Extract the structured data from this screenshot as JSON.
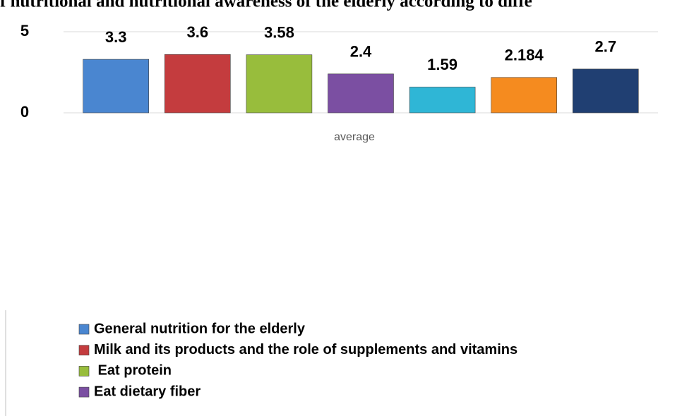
{
  "chart_data": {
    "type": "bar",
    "title": "f nutritional and nutritional awareness of the elderly according to diffe",
    "categories": [
      "average"
    ],
    "series": [
      {
        "name": "General nutrition for the elderly",
        "color": "#4a86d0",
        "values": [
          3.3
        ]
      },
      {
        "name": "Milk and its products and the role of supplements and vitamins",
        "color": "#c43c3e",
        "values": [
          3.6
        ]
      },
      {
        "name": " Eat protein",
        "color": "#98bd3c",
        "values": [
          3.58
        ]
      },
      {
        "name": "Eat dietary fiber",
        "color": "#7b4fa2",
        "values": [
          2.4
        ]
      },
      {
        "name": null,
        "color": "#2fb6d6",
        "values": [
          1.59
        ]
      },
      {
        "name": null,
        "color": "#f58b1f",
        "values": [
          2.184
        ]
      },
      {
        "name": null,
        "color": "#203f72",
        "values": [
          2.7
        ]
      }
    ],
    "ylim": [
      0,
      5
    ],
    "yticks": [
      0,
      5
    ],
    "grid": true
  }
}
